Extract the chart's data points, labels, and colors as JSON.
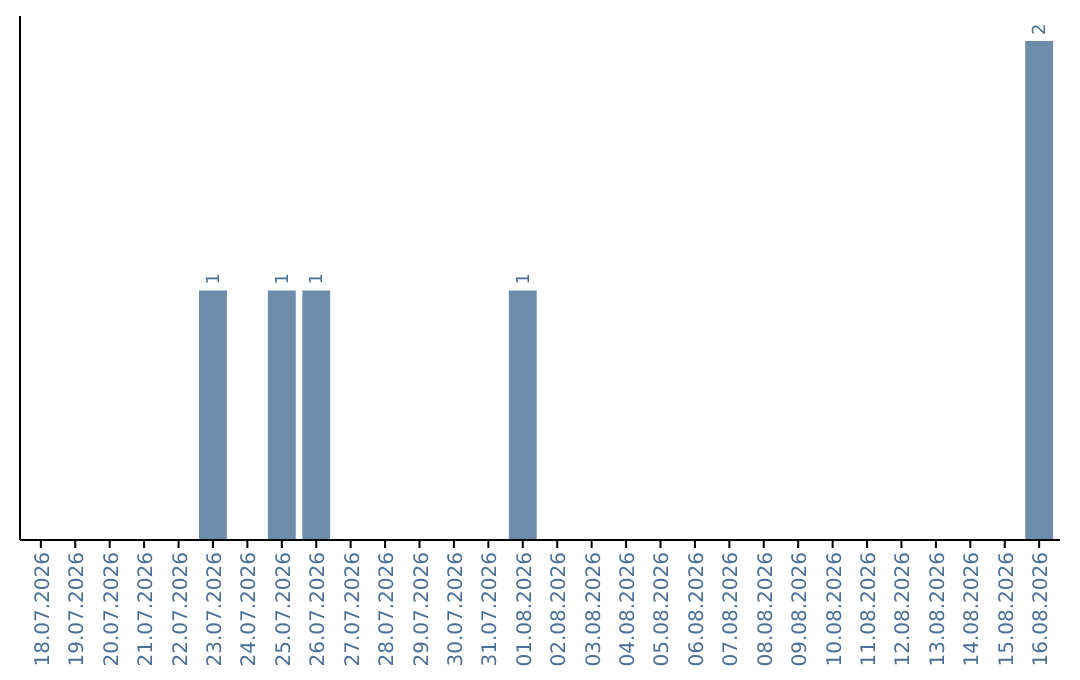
{
  "chart_data": {
    "type": "bar",
    "categories": [
      "18.07.2026",
      "19.07.2026",
      "20.07.2026",
      "21.07.2026",
      "22.07.2026",
      "23.07.2026",
      "24.07.2026",
      "25.07.2026",
      "26.07.2026",
      "27.07.2026",
      "28.07.2026",
      "29.07.2026",
      "30.07.2026",
      "31.07.2026",
      "01.08.2026",
      "02.08.2026",
      "03.08.2026",
      "04.08.2026",
      "05.08.2026",
      "06.08.2026",
      "07.08.2026",
      "08.08.2026",
      "09.08.2026",
      "10.08.2026",
      "11.08.2026",
      "12.08.2026",
      "13.08.2026",
      "14.08.2026",
      "15.08.2026",
      "16.08.2026"
    ],
    "values": [
      0,
      0,
      0,
      0,
      0,
      1,
      0,
      1,
      1,
      0,
      0,
      0,
      0,
      0,
      1,
      0,
      0,
      0,
      0,
      0,
      0,
      0,
      0,
      0,
      0,
      0,
      0,
      0,
      0,
      2
    ],
    "value_labels": [
      null,
      null,
      null,
      null,
      null,
      "1",
      null,
      "1",
      "1",
      null,
      null,
      null,
      null,
      null,
      "1",
      null,
      null,
      null,
      null,
      null,
      null,
      null,
      null,
      null,
      null,
      null,
      null,
      null,
      null,
      "2"
    ],
    "color": "#6e8dab"
  }
}
